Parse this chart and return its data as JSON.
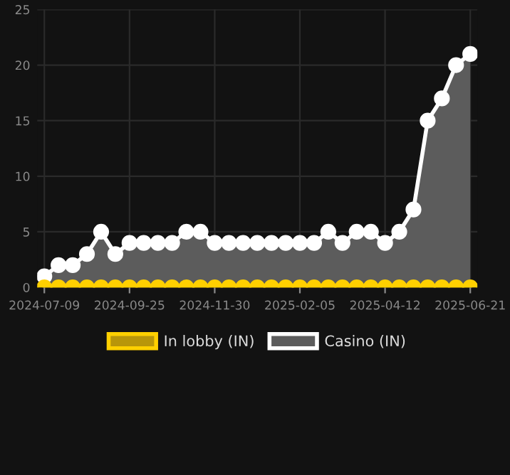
{
  "chart_data": {
    "type": "line",
    "categories": [
      "2024-07-09",
      null,
      null,
      null,
      null,
      null,
      "2024-09-25",
      null,
      null,
      null,
      null,
      null,
      "2024-11-30",
      null,
      null,
      null,
      null,
      null,
      "2025-02-05",
      null,
      null,
      null,
      null,
      null,
      "2025-04-12",
      null,
      null,
      null,
      null,
      null,
      "2025-06-21"
    ],
    "series": [
      {
        "name": "In lobby (IN)",
        "color": "#ffd000",
        "values": [
          0,
          0,
          0,
          0,
          0,
          0,
          0,
          0,
          0,
          0,
          0,
          0,
          0,
          0,
          0,
          0,
          0,
          0,
          0,
          0,
          0,
          0,
          0,
          0,
          0,
          0,
          0,
          0,
          0,
          0,
          0
        ]
      },
      {
        "name": "Casino (IN)",
        "type": "area",
        "color": "#ffffff",
        "values": [
          1,
          2,
          2,
          3,
          5,
          3,
          4,
          4,
          4,
          4,
          5,
          5,
          4,
          4,
          4,
          4,
          4,
          4,
          4,
          4,
          5,
          4,
          5,
          5,
          4,
          5,
          7,
          15,
          17,
          20,
          21
        ]
      }
    ],
    "ylim": [
      0,
      25
    ],
    "yticks": [
      0,
      5,
      10,
      15,
      20,
      25
    ],
    "grid": true,
    "legend": "bottom",
    "marker": "circle"
  }
}
